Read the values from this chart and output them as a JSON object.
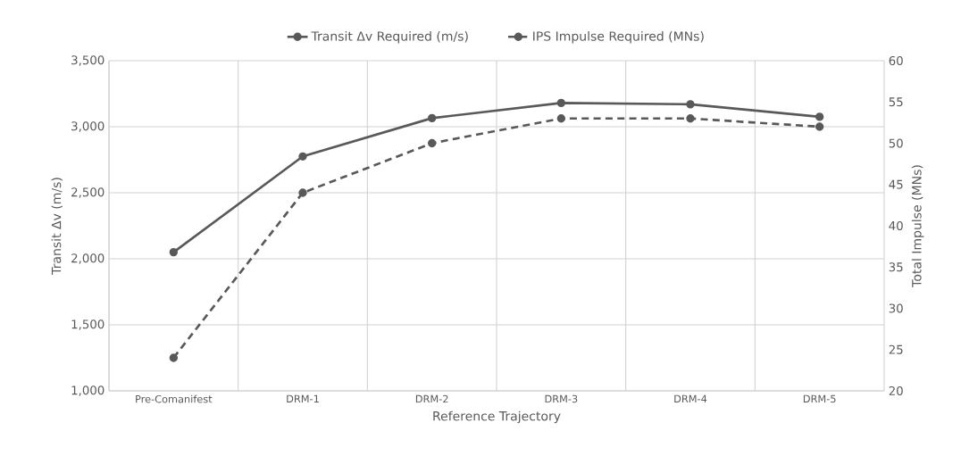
{
  "chart_data": {
    "type": "line",
    "xlabel": "Reference Trajectory",
    "ylabel": "Transit Δv (m/s)",
    "y2label": "Total Impulse (MNs)",
    "categories": [
      "Pre-Comanifest",
      "DRM-1",
      "DRM-2",
      "DRM-3",
      "DRM-4",
      "DRM-5"
    ],
    "series": [
      {
        "name": "Transit Δv Required (m/s)",
        "color": "#595959",
        "line_style": "solid",
        "values": [
          2050,
          2775,
          3065,
          3180,
          3170,
          3075
        ]
      },
      {
        "name": "IPS Impulse Required (MNs)",
        "color": "#595959",
        "line_style": "dashed",
        "axis": "y2",
        "values": [
          24,
          44,
          50,
          53,
          53,
          52
        ]
      }
    ],
    "ylim": [
      1000,
      3500
    ],
    "yticks": [
      {
        "value": 1000,
        "label": "1,000"
      },
      {
        "value": 1500,
        "label": "1,500"
      },
      {
        "value": 2000,
        "label": "2,000"
      },
      {
        "value": 2500,
        "label": "2,500"
      },
      {
        "value": 3000,
        "label": "3,000"
      },
      {
        "value": 3500,
        "label": "3,500"
      }
    ],
    "y2lim": [
      20,
      60
    ],
    "y2ticks": [
      20,
      25,
      30,
      35,
      40,
      45,
      50,
      55,
      60
    ],
    "grid": true,
    "legend": "top",
    "marker": "circle"
  }
}
